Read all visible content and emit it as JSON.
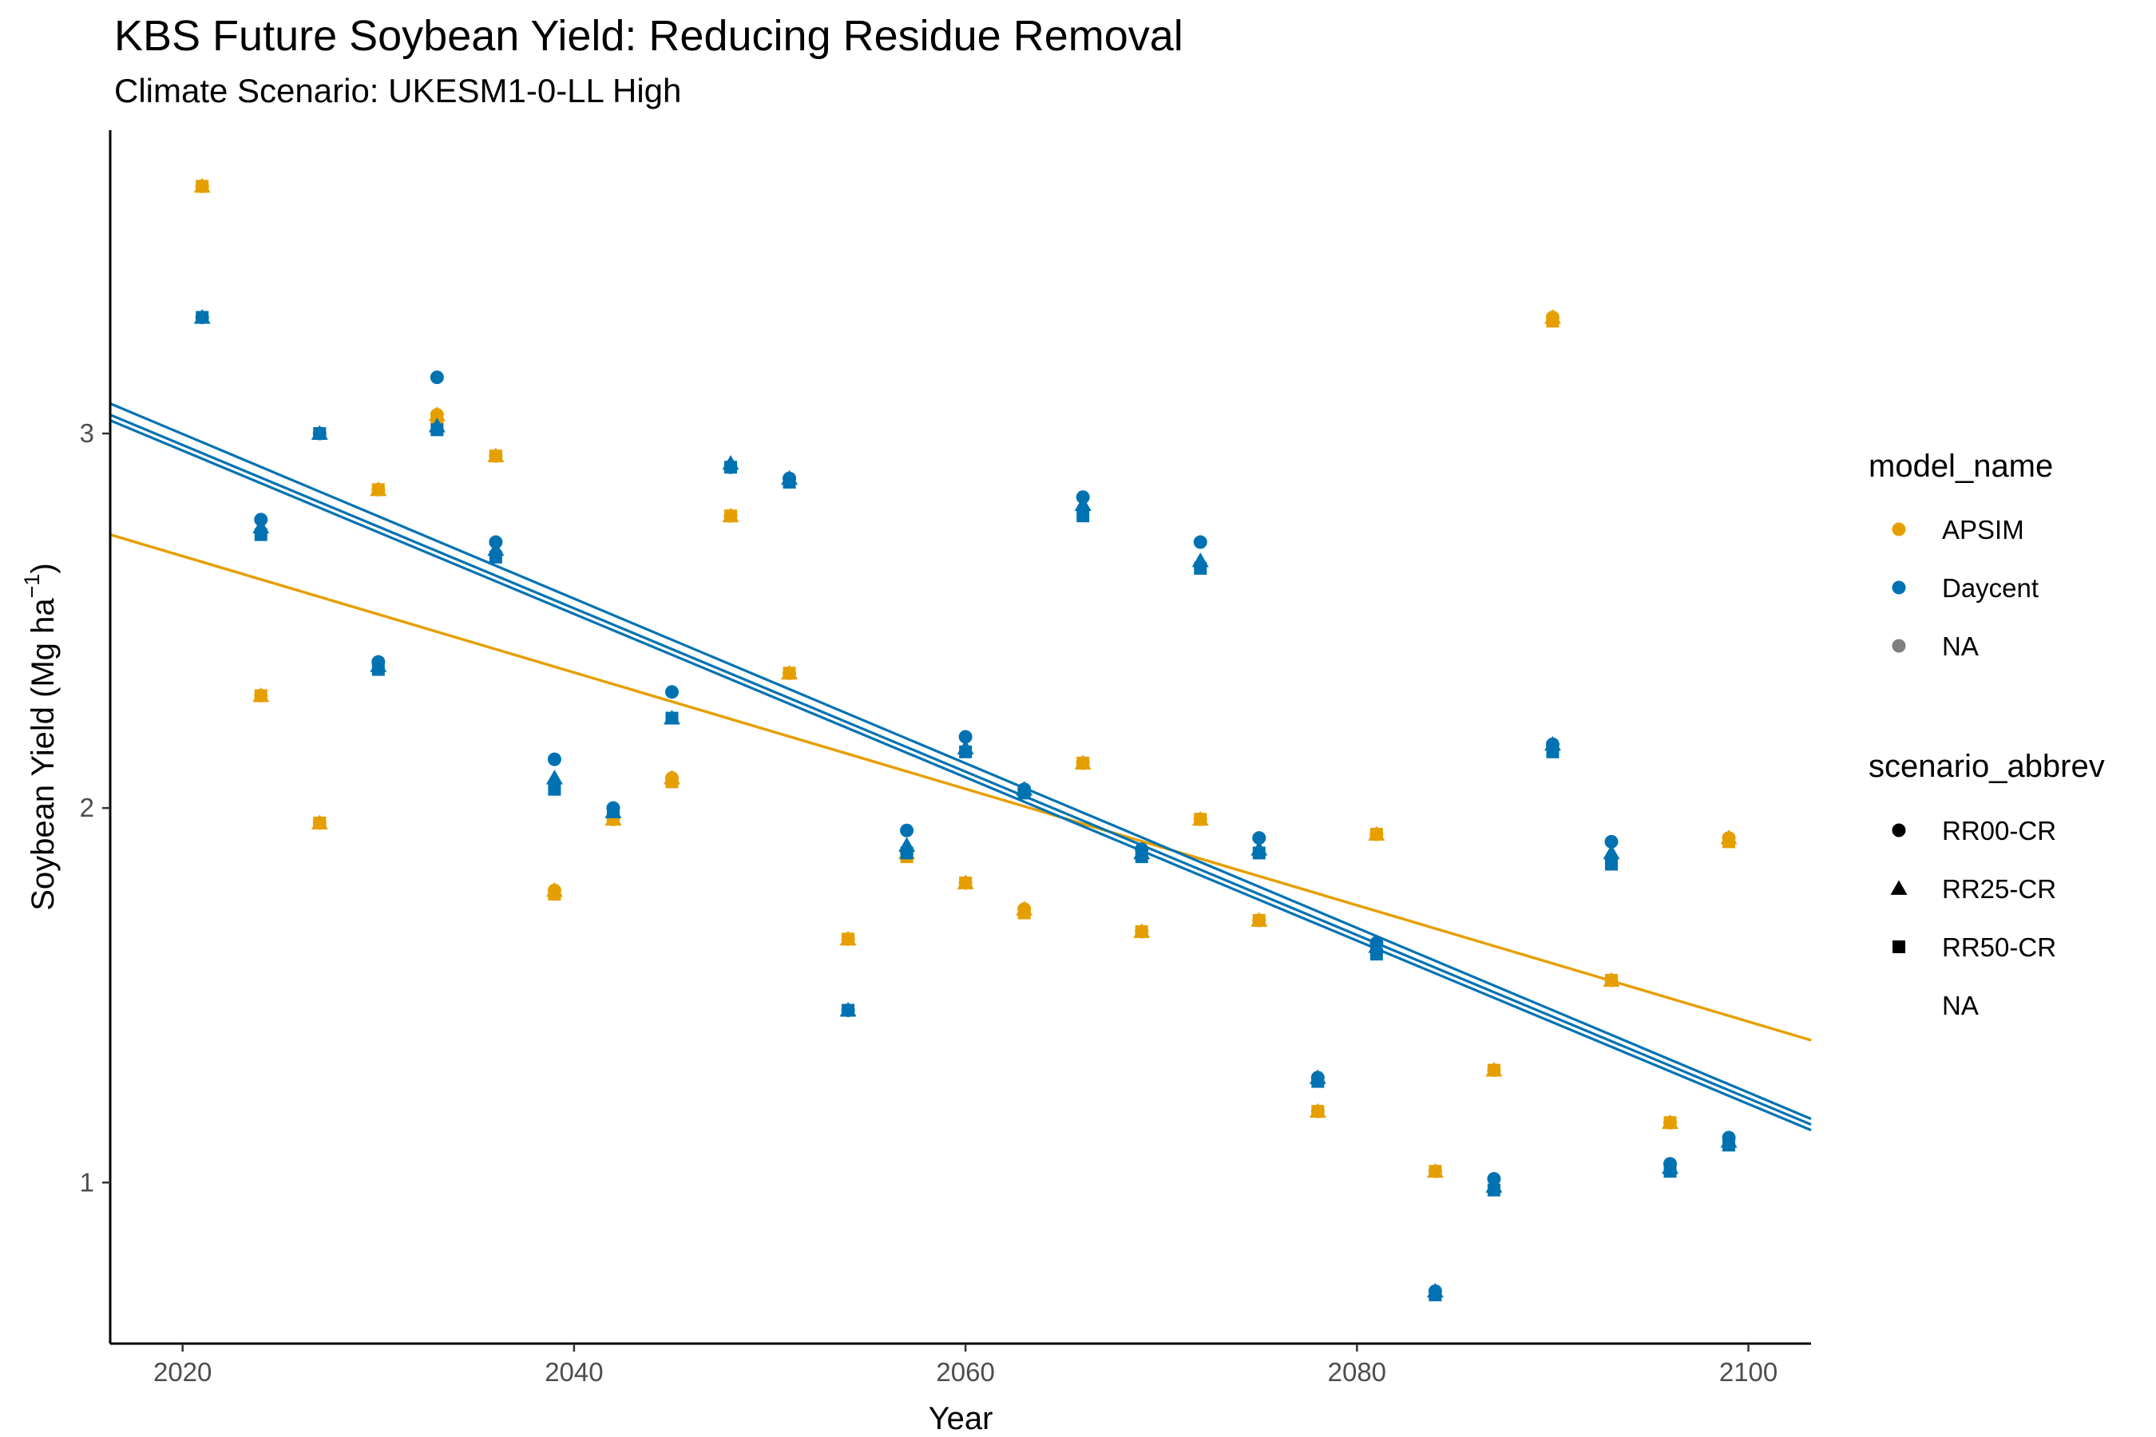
{
  "chart_data": {
    "type": "scatter",
    "title": "KBS Future Soybean Yield: Reducing Residue Removal",
    "subtitle": "Climate Scenario: UKESM1-0-LL High",
    "xlabel": "Year",
    "ylabel": "Soybean Yield (Mg ha",
    "ylabel_sup": "−1",
    "ylabel_close": ")",
    "xlim": [
      2016.3,
      2103.2
    ],
    "ylim": [
      0.57,
      3.81
    ],
    "x_ticks": [
      2020,
      2040,
      2060,
      2080,
      2100
    ],
    "y_ticks": [
      1,
      2,
      3
    ],
    "grid": false,
    "legend_position": "right",
    "colors": {
      "APSIM": "#E69F00",
      "Daycent": "#0072B2",
      "NA": "#808080"
    },
    "legend": {
      "color_title": "model_name",
      "color_items": [
        "APSIM",
        "Daycent",
        "NA"
      ],
      "shape_title": "scenario_abbrev",
      "shape_items": [
        {
          "label": "RR00-CR",
          "shape": "circle"
        },
        {
          "label": "RR25-CR",
          "shape": "triangle"
        },
        {
          "label": "RR50-CR",
          "shape": "square"
        },
        {
          "label": "NA",
          "shape": "none"
        }
      ]
    },
    "series": [
      {
        "model": "APSIM",
        "scenario": "RR00-CR",
        "shape": "circle",
        "x": [
          2021,
          2024,
          2027,
          2030,
          2033,
          2036,
          2039,
          2042,
          2045,
          2048,
          2051,
          2054,
          2057,
          2060,
          2063,
          2066,
          2069,
          2072,
          2075,
          2078,
          2081,
          2084,
          2087,
          2090,
          2093,
          2096,
          2099
        ],
        "y": [
          3.66,
          2.3,
          1.96,
          2.85,
          3.05,
          2.94,
          1.78,
          1.97,
          2.08,
          2.78,
          2.36,
          1.65,
          1.88,
          1.8,
          1.73,
          2.12,
          1.67,
          1.97,
          1.7,
          1.19,
          1.93,
          1.03,
          1.3,
          3.31,
          1.54,
          1.16,
          1.92
        ]
      },
      {
        "model": "APSIM",
        "scenario": "RR25-CR",
        "shape": "triangle",
        "x": [
          2021,
          2024,
          2027,
          2030,
          2033,
          2036,
          2039,
          2042,
          2045,
          2048,
          2051,
          2054,
          2057,
          2060,
          2063,
          2066,
          2069,
          2072,
          2075,
          2078,
          2081,
          2084,
          2087,
          2090,
          2093,
          2096,
          2099
        ],
        "y": [
          3.66,
          2.3,
          1.96,
          2.85,
          3.05,
          2.94,
          1.78,
          1.97,
          2.08,
          2.78,
          2.36,
          1.65,
          1.88,
          1.8,
          1.73,
          2.12,
          1.67,
          1.97,
          1.7,
          1.19,
          1.93,
          1.03,
          1.3,
          3.31,
          1.54,
          1.16,
          1.92
        ]
      },
      {
        "model": "APSIM",
        "scenario": "RR50-CR",
        "shape": "square",
        "x": [
          2021,
          2024,
          2027,
          2030,
          2033,
          2036,
          2039,
          2042,
          2045,
          2048,
          2051,
          2054,
          2057,
          2060,
          2063,
          2066,
          2069,
          2072,
          2075,
          2078,
          2081,
          2084,
          2087,
          2090,
          2093,
          2096,
          2099
        ],
        "y": [
          3.66,
          2.3,
          1.96,
          2.85,
          3.04,
          2.94,
          1.77,
          1.97,
          2.07,
          2.78,
          2.36,
          1.65,
          1.87,
          1.8,
          1.72,
          2.12,
          1.67,
          1.97,
          1.7,
          1.19,
          1.93,
          1.03,
          1.3,
          3.3,
          1.54,
          1.16,
          1.91
        ]
      },
      {
        "model": "Daycent",
        "scenario": "RR00-CR",
        "shape": "circle",
        "x": [
          2021,
          2024,
          2027,
          2030,
          2033,
          2036,
          2039,
          2042,
          2045,
          2048,
          2051,
          2054,
          2057,
          2060,
          2063,
          2066,
          2069,
          2072,
          2075,
          2078,
          2081,
          2084,
          2087,
          2090,
          2093,
          2096,
          2099
        ],
        "y": [
          3.31,
          2.77,
          3.0,
          2.39,
          3.15,
          2.71,
          2.13,
          2.0,
          2.31,
          2.91,
          2.88,
          1.46,
          1.94,
          2.19,
          2.05,
          2.83,
          1.89,
          2.71,
          1.92,
          1.28,
          1.64,
          0.71,
          1.01,
          2.17,
          1.91,
          1.05,
          1.12
        ]
      },
      {
        "model": "Daycent",
        "scenario": "RR25-CR",
        "shape": "triangle",
        "x": [
          2021,
          2024,
          2027,
          2030,
          2033,
          2036,
          2039,
          2042,
          2045,
          2048,
          2051,
          2054,
          2057,
          2060,
          2063,
          2066,
          2069,
          2072,
          2075,
          2078,
          2081,
          2084,
          2087,
          2090,
          2093,
          2096,
          2099
        ],
        "y": [
          3.31,
          2.75,
          3.0,
          2.38,
          3.02,
          2.69,
          2.08,
          1.99,
          2.24,
          2.92,
          2.88,
          1.46,
          1.9,
          2.16,
          2.05,
          2.81,
          1.88,
          2.66,
          1.89,
          1.28,
          1.63,
          0.71,
          0.99,
          2.17,
          1.88,
          1.04,
          1.11
        ]
      },
      {
        "model": "Daycent",
        "scenario": "RR50-CR",
        "shape": "square",
        "x": [
          2021,
          2024,
          2027,
          2030,
          2033,
          2036,
          2039,
          2042,
          2045,
          2048,
          2051,
          2054,
          2057,
          2060,
          2063,
          2066,
          2069,
          2072,
          2075,
          2078,
          2081,
          2084,
          2087,
          2090,
          2093,
          2096,
          2099
        ],
        "y": [
          3.31,
          2.73,
          3.0,
          2.37,
          3.01,
          2.67,
          2.05,
          1.99,
          2.24,
          2.91,
          2.87,
          1.46,
          1.88,
          2.15,
          2.04,
          2.78,
          1.87,
          2.64,
          1.88,
          1.27,
          1.61,
          0.7,
          0.98,
          2.15,
          1.85,
          1.03,
          1.1
        ]
      }
    ],
    "trend_lines": [
      {
        "model": "APSIM",
        "scenario": "RR00-CR",
        "x": [
          2016.3,
          2103.2
        ],
        "y": [
          2.73,
          1.38
        ]
      },
      {
        "model": "APSIM",
        "scenario": "RR25-CR",
        "x": [
          2016.3,
          2103.2
        ],
        "y": [
          2.73,
          1.38
        ]
      },
      {
        "model": "APSIM",
        "scenario": "RR50-CR",
        "x": [
          2016.3,
          2103.2
        ],
        "y": [
          2.73,
          1.38
        ]
      },
      {
        "model": "Daycent",
        "scenario": "RR00-CR",
        "x": [
          2016.3,
          2103.2
        ],
        "y": [
          3.08,
          1.17
        ]
      },
      {
        "model": "Daycent",
        "scenario": "RR25-CR",
        "x": [
          2016.3,
          2103.2
        ],
        "y": [
          3.05,
          1.155
        ]
      },
      {
        "model": "Daycent",
        "scenario": "RR50-CR",
        "x": [
          2016.3,
          2103.2
        ],
        "y": [
          3.035,
          1.14
        ]
      }
    ]
  }
}
